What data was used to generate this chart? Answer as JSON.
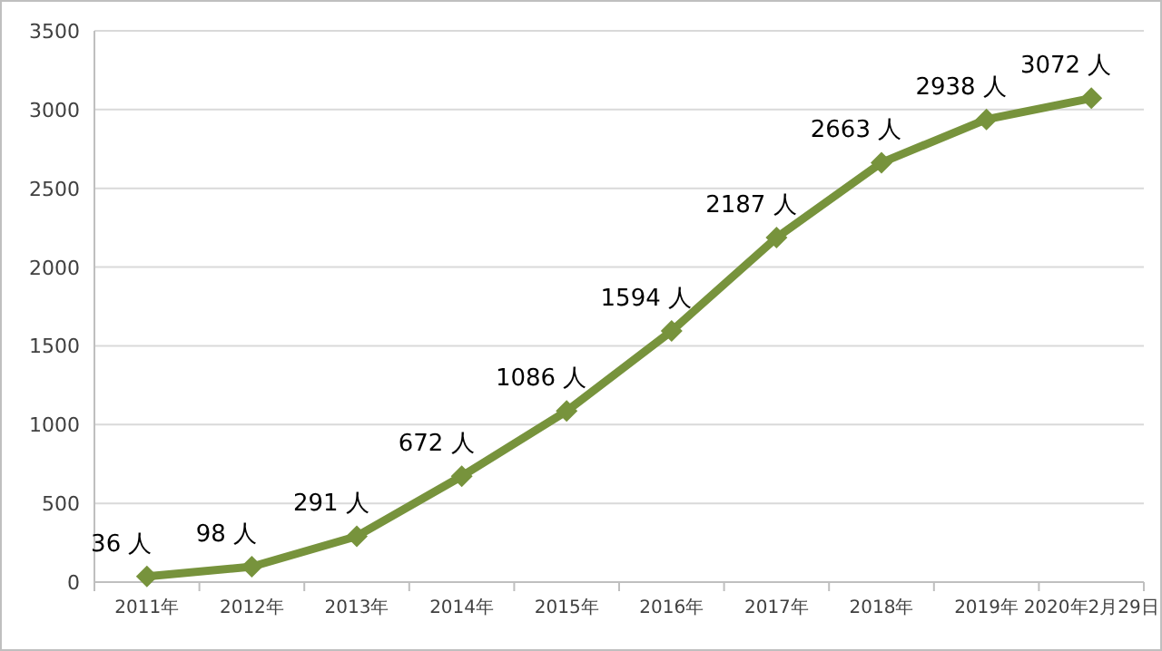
{
  "chart_data": {
    "type": "line",
    "categories": [
      "2011年",
      "2012年",
      "2013年",
      "2014年",
      "2015年",
      "2016年",
      "2017年",
      "2018年",
      "2019年",
      "2020年2月29日"
    ],
    "values": [
      36,
      98,
      291,
      672,
      1086,
      1594,
      2187,
      2663,
      2938,
      3072
    ],
    "value_labels": [
      "36 人",
      "98 人",
      "291 人",
      "672 人",
      "1086 人",
      "1594 人",
      "2187 人",
      "2663 人",
      "2938 人",
      "3072 人"
    ],
    "color": "#77933c",
    "marker": "diamond",
    "ylim": [
      0,
      3500
    ],
    "yticks": [
      0,
      500,
      1000,
      1500,
      2000,
      2500,
      3000,
      3500
    ],
    "grid": "y"
  }
}
